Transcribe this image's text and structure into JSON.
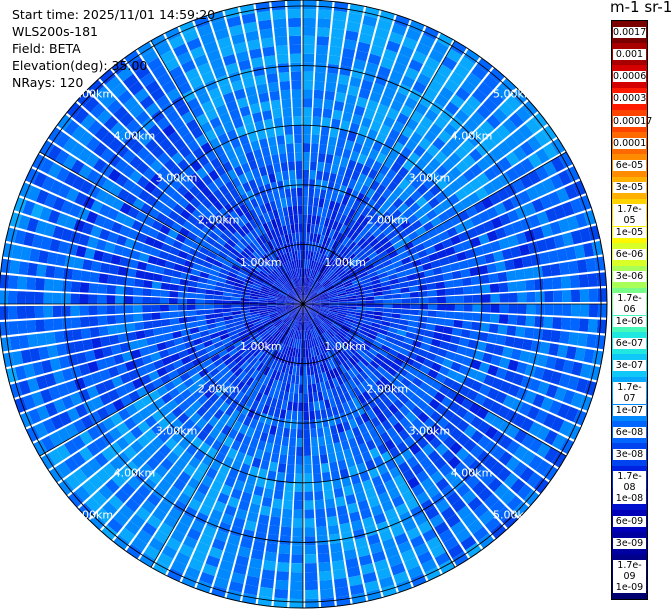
{
  "info": {
    "start_time": "Start time: 2025/11/01 14:59:20",
    "instrument": "WLS200s-181",
    "field": "Field: BETA",
    "elevation": "Elevation(deg): 35.00",
    "nrays": "NRays: 120"
  },
  "colorbar": {
    "title": "m-1 sr-1",
    "labels": [
      "0.0017",
      "0.001",
      "0.0006",
      "0.0003",
      "0.00017",
      "0.0001",
      "6e-05",
      "3e-05",
      "1.7e-05",
      "1e-05",
      "6e-06",
      "3e-06",
      "1.7e-06",
      "1e-06",
      "6e-07",
      "3e-07",
      "1.7e-07",
      "1e-07",
      "6e-08",
      "3e-08",
      "1.7e-08",
      "1e-08",
      "6e-09",
      "3e-09",
      "1.7e-09",
      "1e-09"
    ],
    "colors": [
      "#7a0000",
      "#a80000",
      "#d40000",
      "#ff1a00",
      "#ff4400",
      "#ff6a00",
      "#ff8c00",
      "#ffb000",
      "#ffd400",
      "#fff700",
      "#d8ff28",
      "#a8ff58",
      "#78ff88",
      "#48f8b8",
      "#20e8e0",
      "#10c8f8",
      "#08a8ff",
      "#0088ff",
      "#0066ff",
      "#0044f0",
      "#0022e0",
      "#0010cc",
      "#0000b8",
      "#0000a0",
      "#000088",
      "#000070"
    ]
  },
  "chart_data": {
    "type": "heatmap",
    "plot_kind": "PPI polar scan",
    "field": "BETA",
    "units": "m-1 sr-1",
    "scale": "log",
    "vmin": 1e-09,
    "vmax": 0.0017,
    "elevation_deg": 35.0,
    "nrays": 120,
    "range_rings_km": [
      1,
      2,
      3,
      4,
      5
    ],
    "ring_labels": [
      "1.00km",
      "2.00km",
      "3.00km",
      "4.00km",
      "5.00km"
    ],
    "max_range_km": 5.1,
    "spoke_step_deg": 30,
    "pattern": {
      "near_value": 1e-08,
      "far_value": 1e-07,
      "low_sector_deg": [
        [
          60,
          150
        ],
        [
          240,
          330
        ]
      ],
      "low_sector_value": 3e-08
    }
  }
}
